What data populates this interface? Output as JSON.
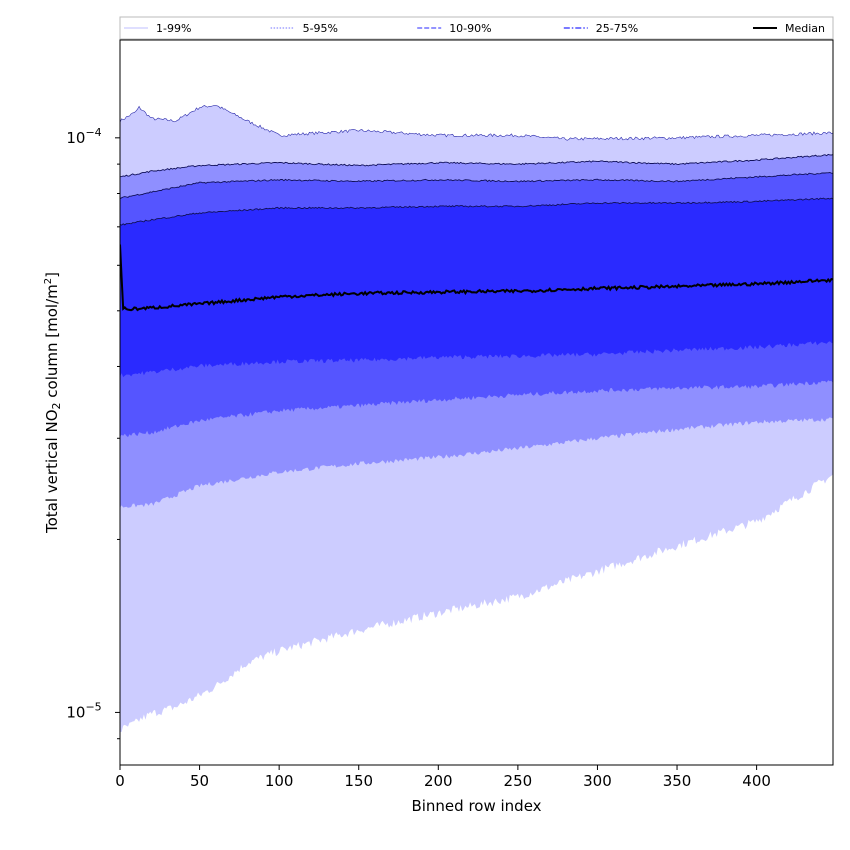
{
  "chart_data": {
    "type": "area",
    "title": "",
    "xlabel": "Binned row index",
    "ylabel_main": "Total vertical NO",
    "ylabel_sub": "2",
    "ylabel_rest": " column [mol/m",
    "ylabel_sup": "2",
    "ylabel_end": "]",
    "x_scale": "linear",
    "y_scale": "log",
    "xlim": [
      0,
      448
    ],
    "ylim": [
      8.1e-06,
      0.000148
    ],
    "grid": false,
    "legend_placement": "top",
    "x_ticks": [
      0,
      50,
      100,
      150,
      200,
      250,
      300,
      350,
      400
    ],
    "y_major_ticks": [
      {
        "value": 1e-05,
        "base": "10",
        "exp": "−5"
      },
      {
        "value": 0.0001,
        "base": "10",
        "exp": "−4"
      }
    ],
    "y_minor_ticks": [
      9e-06,
      2e-05,
      3e-05,
      4e-05,
      5e-05,
      6e-05,
      7e-05,
      8e-05,
      9e-05
    ],
    "legend": [
      {
        "label": "1-99%",
        "color": "#ccccff",
        "dash": "solid"
      },
      {
        "label": "5-95%",
        "color": "#8f8fff",
        "dash": "dotted"
      },
      {
        "label": "10-90%",
        "color": "#5555ff",
        "dash": "dashed"
      },
      {
        "label": "25-75%",
        "color": "#2a2aff",
        "dash": "dashdot"
      },
      {
        "label": "Median",
        "color": "#000000",
        "dash": "solid"
      }
    ],
    "series": [
      {
        "name": "1-99%",
        "color": "#ccccff",
        "x": [
          0,
          10,
          12,
          20,
          35,
          50,
          60,
          80,
          100,
          150,
          200,
          250,
          280,
          350,
          400,
          448
        ],
        "lower": [
          9.3e-06,
          9.6e-06,
          9.7e-06,
          9.951e-06,
          1.022e-05,
          1.07e-05,
          1.11e-05,
          1.22e-05,
          1.28e-05,
          1.39e-05,
          1.49e-05,
          1.59e-05,
          1.69e-05,
          1.95e-05,
          2.15e-05,
          2.59e-05
        ],
        "upper": [
          0.000107,
          0.000111,
          0.000113,
          0.000108,
          0.000107,
          0.000113,
          0.000114,
          0.000107,
          0.000101,
          0.000103,
          0.000101,
          0.000101,
          9.95e-05,
          0.0001,
          0.000101,
          0.000102
        ]
      },
      {
        "name": "5-95%",
        "color": "#8f8fff",
        "x": [
          0,
          20,
          50,
          100,
          150,
          200,
          250,
          300,
          350,
          400,
          448
        ],
        "lower": [
          2.28e-05,
          2.3e-05,
          2.48e-05,
          2.62e-05,
          2.71e-05,
          2.78e-05,
          2.88e-05,
          3e-05,
          3.11e-05,
          3.2e-05,
          3.24e-05
        ],
        "upper": [
          8.55e-05,
          8.75e-05,
          8.95e-05,
          9.05e-05,
          8.95e-05,
          9.05e-05,
          9e-05,
          9.1e-05,
          9e-05,
          9.15e-05,
          9.35e-05
        ]
      },
      {
        "name": "10-90%",
        "color": "#5555ff",
        "x": [
          0,
          20,
          50,
          100,
          150,
          200,
          250,
          300,
          350,
          400,
          448
        ],
        "lower": [
          3.03e-05,
          3.07e-05,
          3.22e-05,
          3.35e-05,
          3.42e-05,
          3.5e-05,
          3.57e-05,
          3.63e-05,
          3.67e-05,
          3.69e-05,
          3.77e-05
        ],
        "upper": [
          7.85e-05,
          8.05e-05,
          8.35e-05,
          8.45e-05,
          8.4e-05,
          8.45e-05,
          8.4e-05,
          8.45e-05,
          8.4e-05,
          8.55e-05,
          8.7e-05
        ]
      },
      {
        "name": "25-75%",
        "color": "#2a2aff",
        "x": [
          0,
          20,
          50,
          100,
          150,
          200,
          250,
          300,
          350,
          400,
          448
        ],
        "lower": [
          3.86e-05,
          3.91e-05,
          4.01e-05,
          4.08e-05,
          4.1e-05,
          4.15e-05,
          4.17e-05,
          4.2e-05,
          4.27e-05,
          4.32e-05,
          4.41e-05
        ],
        "upper": [
          7.05e-05,
          7.2e-05,
          7.4e-05,
          7.55e-05,
          7.55e-05,
          7.6e-05,
          7.6e-05,
          7.7e-05,
          7.7e-05,
          7.75e-05,
          7.85e-05
        ]
      },
      {
        "name": "Median",
        "color": "#000000",
        "x": [
          0,
          2,
          5,
          20,
          50,
          100,
          150,
          200,
          250,
          300,
          350,
          400,
          448
        ],
        "values": [
          6.5e-05,
          5.05e-05,
          5.03e-05,
          5.06e-05,
          5.14e-05,
          5.29e-05,
          5.36e-05,
          5.39e-05,
          5.41e-05,
          5.47e-05,
          5.51e-05,
          5.57e-05,
          5.66e-05
        ]
      }
    ]
  }
}
